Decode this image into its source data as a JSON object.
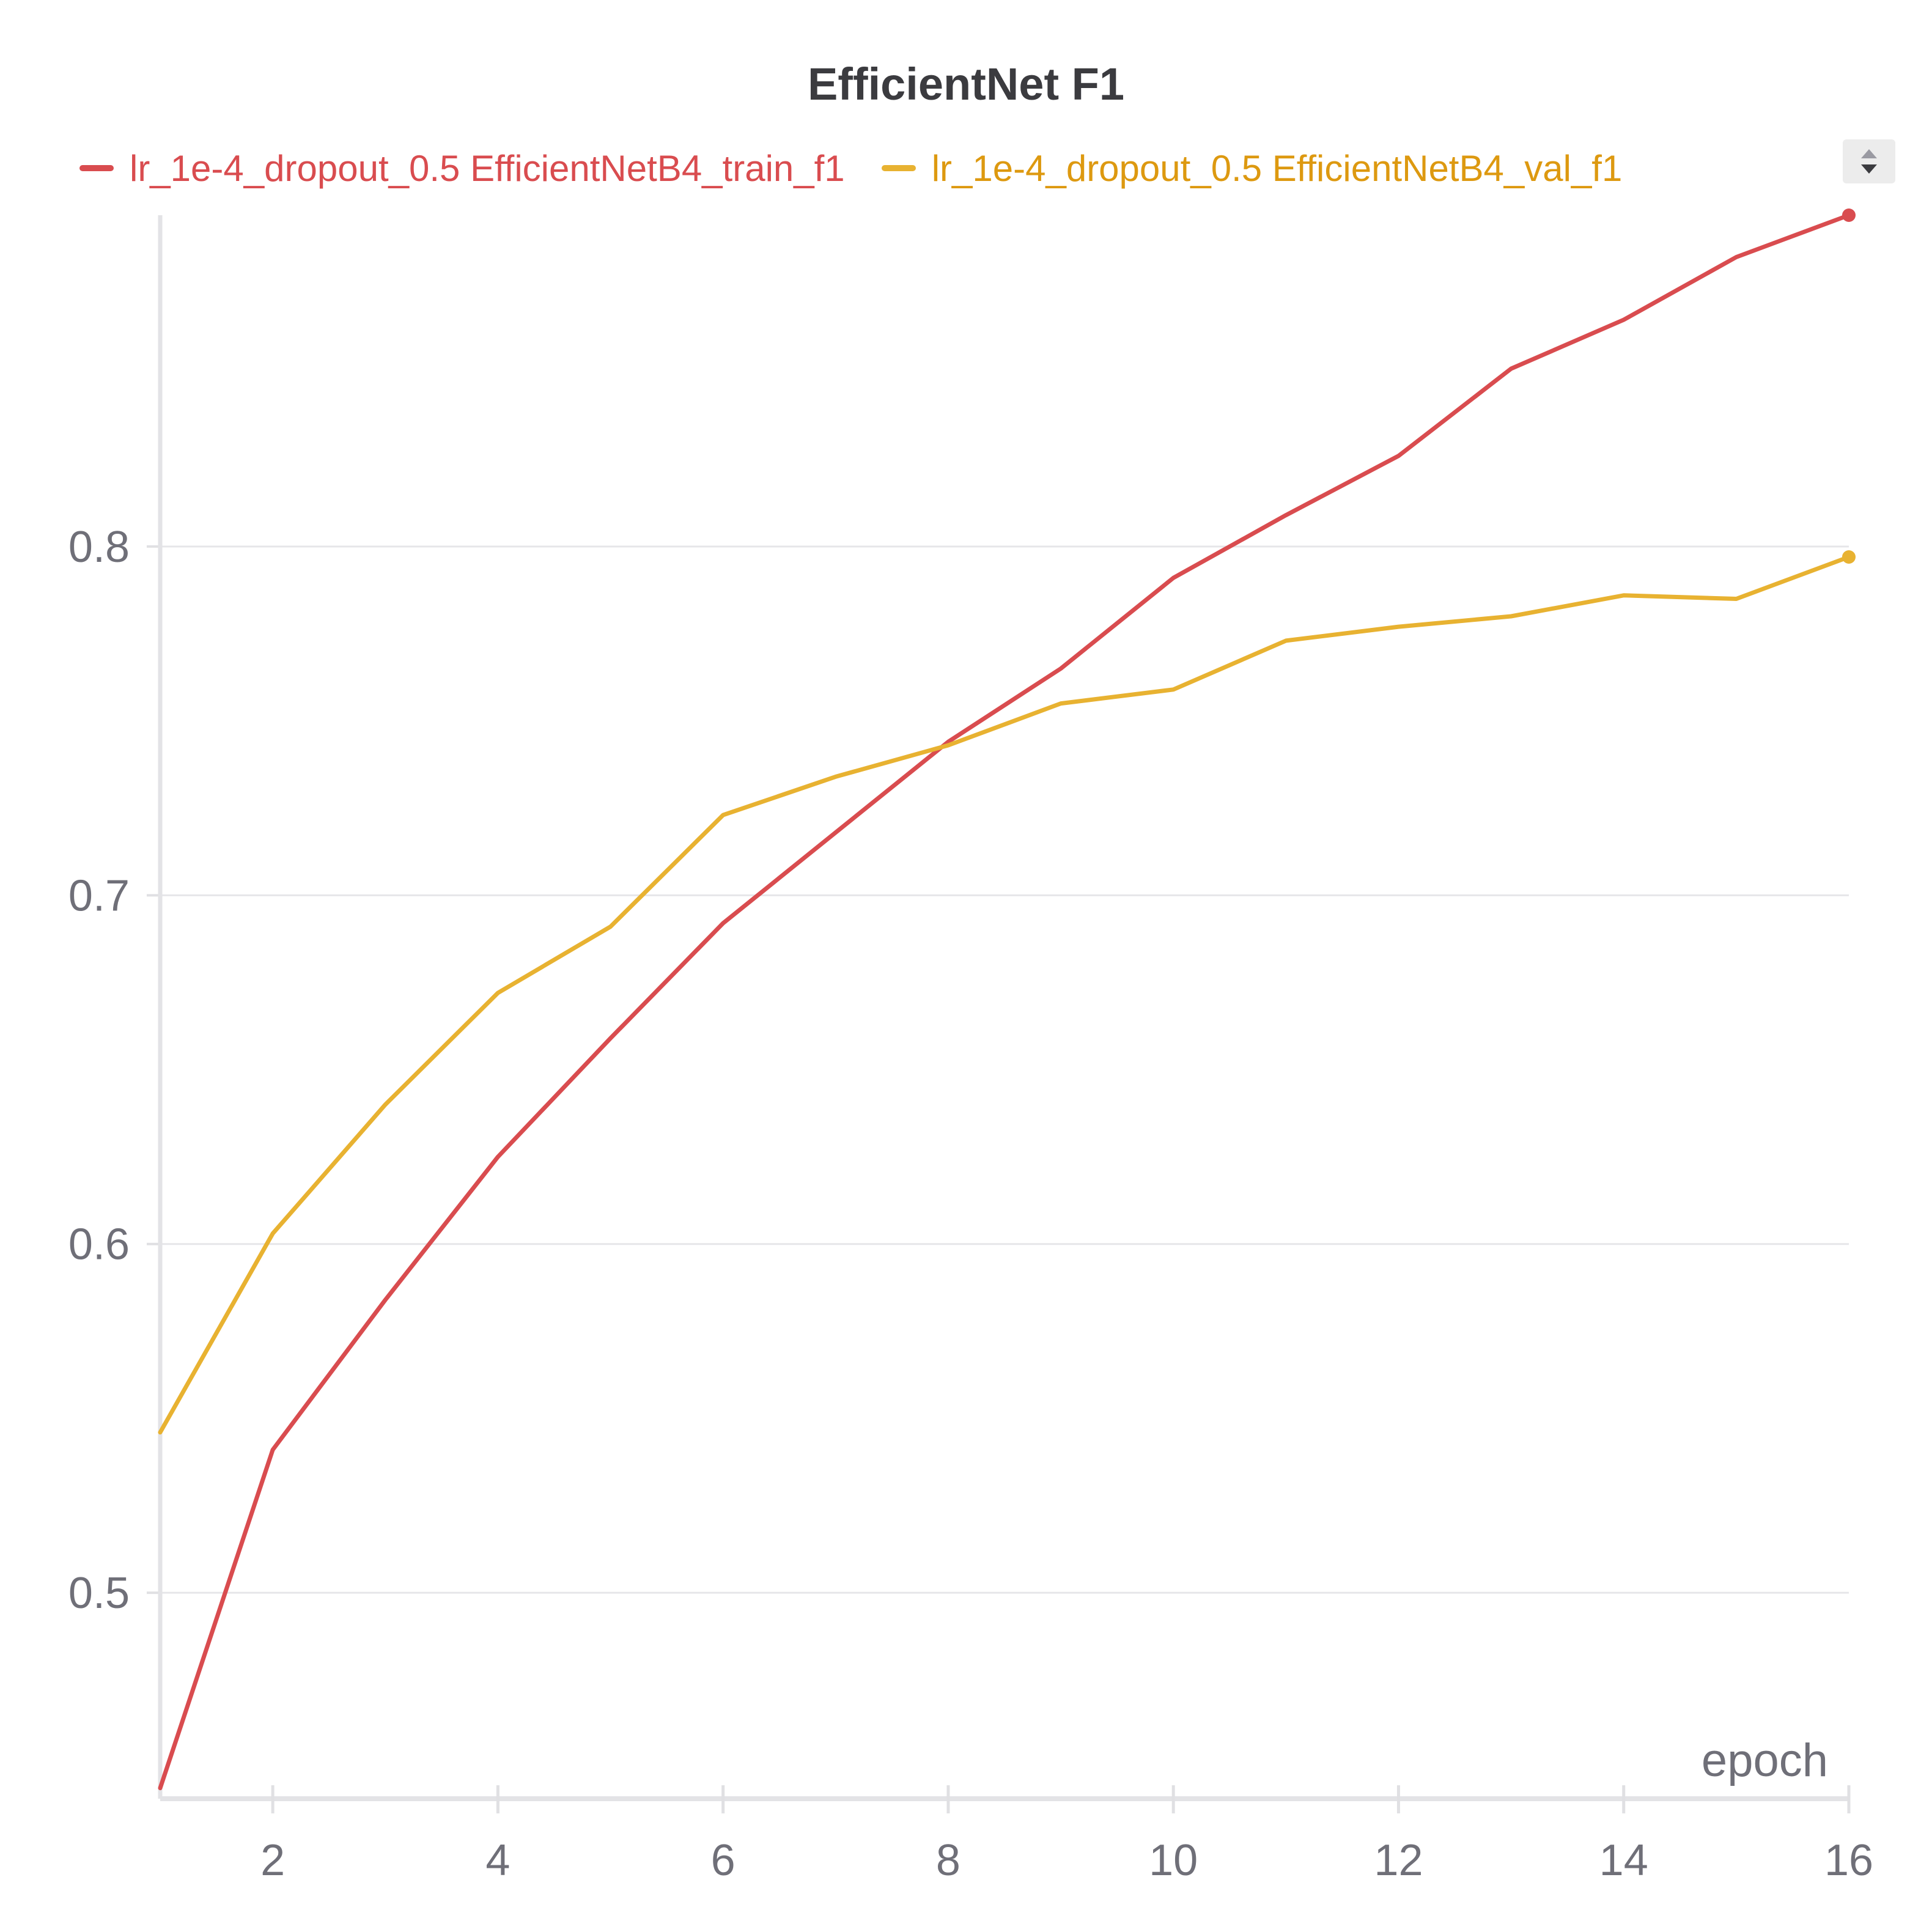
{
  "chart_data": {
    "type": "line",
    "title": "EfficientNet F1",
    "xlabel": "epoch",
    "ylabel": "",
    "x": [
      1,
      2,
      3,
      4,
      5,
      6,
      7,
      8,
      9,
      10,
      11,
      12,
      13,
      14,
      15,
      16
    ],
    "xlim": [
      1,
      16
    ],
    "ylim": [
      0.442,
      0.895
    ],
    "xticks": [
      2,
      4,
      6,
      8,
      10,
      12,
      14,
      16
    ],
    "yticks": [
      0.5,
      0.6,
      0.7,
      0.8
    ],
    "xtick_labels": [
      "2",
      "4",
      "6",
      "8",
      "10",
      "12",
      "14",
      "16"
    ],
    "ytick_labels": [
      "0.5",
      "0.6",
      "0.7",
      "0.8"
    ],
    "grid": true,
    "legend_position": "top",
    "series": [
      {
        "name": "lr_1e-4_dropout_0.5 EfficientNetB4_train_f1",
        "color": "#d94c4f",
        "values": [
          0.444,
          0.541,
          0.584,
          0.625,
          0.659,
          0.692,
          0.718,
          0.744,
          0.765,
          0.791,
          0.809,
          0.826,
          0.851,
          0.865,
          0.883,
          0.895
        ]
      },
      {
        "name": "lr_1e-4_dropout_0.5 EfficientNetB4_val_f1",
        "color": "#e8b231",
        "text_color": "#dd9910",
        "values": [
          0.546,
          0.603,
          0.64,
          0.672,
          0.691,
          0.723,
          0.734,
          0.743,
          0.755,
          0.759,
          0.773,
          0.777,
          0.78,
          0.786,
          0.785,
          0.797
        ]
      }
    ]
  },
  "legend": {
    "scroll_icon": "up-down-arrows-icon"
  }
}
